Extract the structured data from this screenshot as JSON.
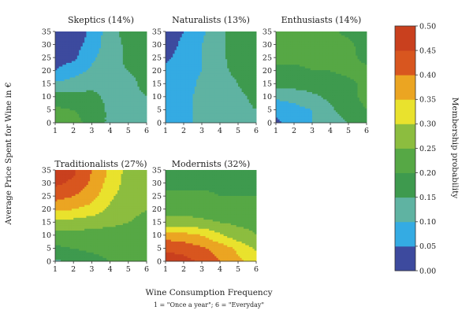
{
  "chart_data": {
    "type": "heatmap",
    "xlabel": "Wine Consumption Frequency",
    "xnote": "1 = \"Once a year\"; 6 = \"Everyday\"",
    "ylabel": "Average Price Spent for Wine in €",
    "xlim": [
      1,
      6
    ],
    "ylim": [
      0,
      35
    ],
    "x_ticks": [
      "1",
      "2",
      "3",
      "4",
      "5",
      "6"
    ],
    "y_ticks": [
      "0",
      "5",
      "10",
      "15",
      "20",
      "25",
      "30",
      "35"
    ],
    "colorbar": {
      "label": "Membership probability",
      "ticks": [
        "0.00",
        "0.05",
        "0.10",
        "0.15",
        "0.20",
        "0.25",
        "0.30",
        "0.35",
        "0.40",
        "0.45",
        "0.50"
      ],
      "colors": [
        "#3d4a9e",
        "#34abe3",
        "#5fb3a2",
        "#3e9a4e",
        "#56a845",
        "#8cbd3f",
        "#e9e22d",
        "#eba522",
        "#d8561f",
        "#c9401e"
      ]
    },
    "panels": [
      {
        "title": "Skeptics (14%)",
        "x": [
          1,
          2,
          3,
          4,
          5,
          6
        ],
        "y": [
          0,
          5,
          10,
          15,
          20,
          25,
          30,
          35
        ],
        "z": [
          [
            0.25,
            0.22,
            0.18,
            0.14,
            0.14,
            0.15
          ],
          [
            0.21,
            0.2,
            0.18,
            0.14,
            0.14,
            0.15
          ],
          [
            0.17,
            0.17,
            0.16,
            0.14,
            0.14,
            0.15
          ],
          [
            0.11,
            0.12,
            0.14,
            0.14,
            0.14,
            0.16
          ],
          [
            0.05,
            0.08,
            0.11,
            0.14,
            0.15,
            0.16
          ],
          [
            0.03,
            0.04,
            0.09,
            0.13,
            0.16,
            0.18
          ],
          [
            0.02,
            0.03,
            0.07,
            0.13,
            0.16,
            0.2
          ],
          [
            0.02,
            0.02,
            0.06,
            0.13,
            0.17,
            0.2
          ]
        ]
      },
      {
        "title": "Naturalists (13%)",
        "x": [
          1,
          2,
          3,
          4,
          5,
          6
        ],
        "y": [
          0,
          5,
          10,
          15,
          20,
          25,
          30,
          35
        ],
        "z": [
          [
            0.08,
            0.09,
            0.11,
            0.13,
            0.14,
            0.15
          ],
          [
            0.08,
            0.09,
            0.11,
            0.13,
            0.14,
            0.15
          ],
          [
            0.08,
            0.09,
            0.11,
            0.13,
            0.14,
            0.16
          ],
          [
            0.07,
            0.08,
            0.11,
            0.13,
            0.15,
            0.18
          ],
          [
            0.06,
            0.08,
            0.1,
            0.14,
            0.16,
            0.18
          ],
          [
            0.04,
            0.07,
            0.1,
            0.14,
            0.17,
            0.18
          ],
          [
            0.03,
            0.06,
            0.1,
            0.14,
            0.17,
            0.18
          ],
          [
            0.02,
            0.05,
            0.09,
            0.14,
            0.17,
            0.18
          ]
        ]
      },
      {
        "title": "Enthusiasts (14%)",
        "x": [
          1,
          2,
          3,
          4,
          5,
          6
        ],
        "y": [
          0,
          5,
          10,
          15,
          20,
          25,
          30,
          35
        ],
        "z": [
          [
            0.04,
            0.07,
            0.1,
            0.12,
            0.15,
            0.19
          ],
          [
            0.06,
            0.08,
            0.1,
            0.14,
            0.18,
            0.2
          ],
          [
            0.11,
            0.12,
            0.14,
            0.16,
            0.19,
            0.21
          ],
          [
            0.17,
            0.17,
            0.17,
            0.18,
            0.19,
            0.21
          ],
          [
            0.19,
            0.19,
            0.2,
            0.2,
            0.21,
            0.21
          ],
          [
            0.21,
            0.21,
            0.21,
            0.21,
            0.21,
            0.19
          ],
          [
            0.22,
            0.21,
            0.21,
            0.21,
            0.21,
            0.18
          ],
          [
            0.22,
            0.21,
            0.21,
            0.21,
            0.19,
            0.18
          ]
        ]
      },
      {
        "title": "Traditionalists (27%)",
        "x": [
          1,
          2,
          3,
          4,
          5,
          6
        ],
        "y": [
          0,
          5,
          10,
          15,
          20,
          25,
          30,
          35
        ],
        "z": [
          [
            0.14,
            0.16,
            0.18,
            0.2,
            0.22,
            0.23
          ],
          [
            0.19,
            0.2,
            0.21,
            0.22,
            0.23,
            0.23
          ],
          [
            0.23,
            0.23,
            0.23,
            0.23,
            0.23,
            0.23
          ],
          [
            0.28,
            0.28,
            0.27,
            0.26,
            0.25,
            0.24
          ],
          [
            0.36,
            0.35,
            0.33,
            0.29,
            0.26,
            0.25
          ],
          [
            0.42,
            0.4,
            0.37,
            0.31,
            0.27,
            0.25
          ],
          [
            0.46,
            0.44,
            0.39,
            0.33,
            0.28,
            0.25
          ],
          [
            0.48,
            0.46,
            0.4,
            0.34,
            0.28,
            0.25
          ]
        ]
      },
      {
        "title": "Modernists (32%)",
        "x": [
          1,
          2,
          3,
          4,
          5,
          6
        ],
        "y": [
          0,
          5,
          10,
          15,
          20,
          25,
          30,
          35
        ],
        "z": [
          [
            0.48,
            0.47,
            0.44,
            0.4,
            0.36,
            0.33
          ],
          [
            0.44,
            0.43,
            0.41,
            0.38,
            0.34,
            0.29
          ],
          [
            0.38,
            0.37,
            0.35,
            0.31,
            0.27,
            0.25
          ],
          [
            0.27,
            0.27,
            0.26,
            0.25,
            0.24,
            0.24
          ],
          [
            0.23,
            0.23,
            0.23,
            0.22,
            0.22,
            0.22
          ],
          [
            0.21,
            0.21,
            0.21,
            0.2,
            0.2,
            0.2
          ],
          [
            0.19,
            0.19,
            0.19,
            0.19,
            0.19,
            0.19
          ],
          [
            0.15,
            0.17,
            0.18,
            0.18,
            0.18,
            0.18
          ]
        ]
      }
    ]
  }
}
